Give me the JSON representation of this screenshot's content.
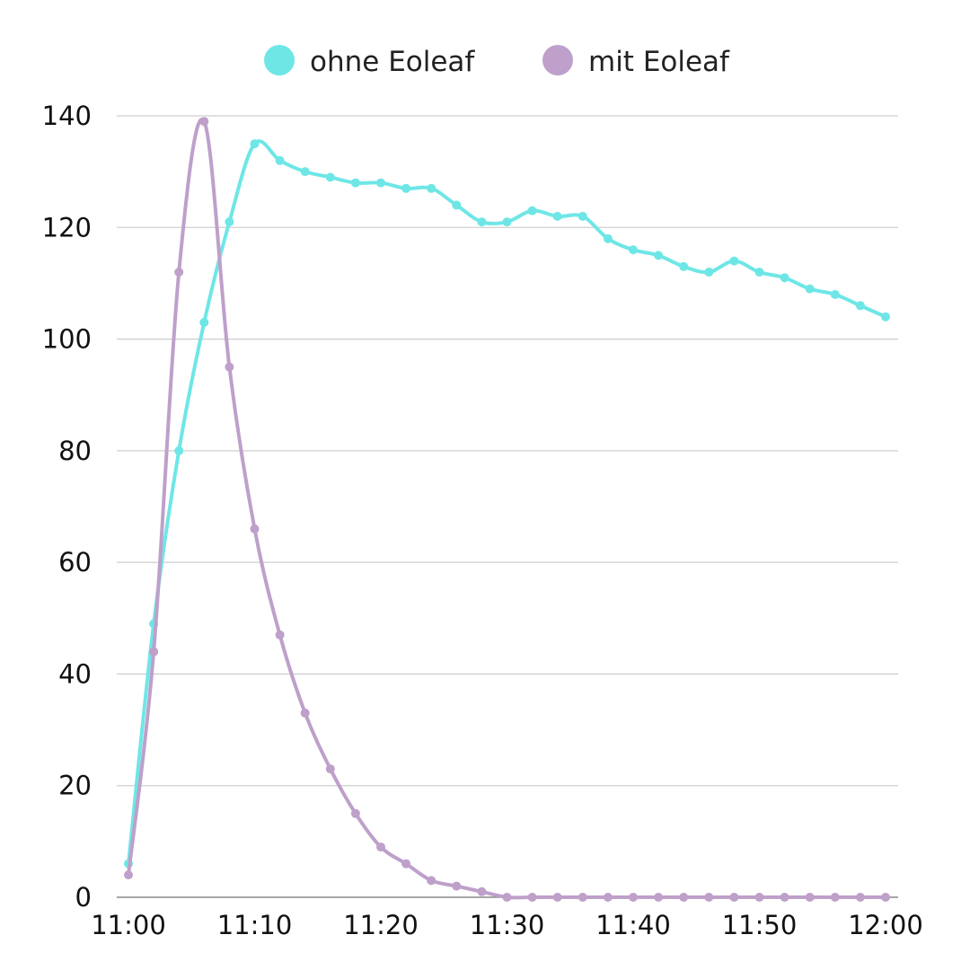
{
  "chart_data": {
    "type": "line",
    "title": "",
    "xlabel": "",
    "ylabel": "",
    "ylim": [
      0,
      140
    ],
    "yticks": [
      "0",
      "20",
      "40",
      "60",
      "80",
      "100",
      "120",
      "140"
    ],
    "xticks": [
      "11:00",
      "11:10",
      "11:20",
      "11:30",
      "11:40",
      "11:50",
      "12:00"
    ],
    "grid": true,
    "legend_position": "top-center",
    "x": [
      "11:00",
      "11:02",
      "11:04",
      "11:06",
      "11:08",
      "11:10",
      "11:12",
      "11:14",
      "11:16",
      "11:18",
      "11:20",
      "11:22",
      "11:24",
      "11:26",
      "11:28",
      "11:30",
      "11:32",
      "11:34",
      "11:36",
      "11:38",
      "11:40",
      "11:42",
      "11:44",
      "11:46",
      "11:48",
      "11:50",
      "11:52",
      "11:54",
      "11:56",
      "11:58",
      "12:00"
    ],
    "series": [
      {
        "name": "ohne Eoleaf",
        "color": "#6ee6e6",
        "values": [
          6,
          49,
          80,
          103,
          121,
          135,
          132,
          130,
          129,
          128,
          128,
          127,
          127,
          124,
          121,
          121,
          123,
          122,
          122,
          118,
          116,
          115,
          113,
          112,
          114,
          112,
          111,
          109,
          108,
          106,
          104
        ]
      },
      {
        "name": "mit Eoleaf",
        "color": "#bea0ca",
        "values": [
          4,
          44,
          112,
          139,
          95,
          66,
          47,
          33,
          23,
          15,
          9,
          6,
          3,
          2,
          1,
          0,
          0,
          0,
          0,
          0,
          0,
          0,
          0,
          0,
          0,
          0,
          0,
          0,
          0,
          0,
          0
        ]
      }
    ]
  }
}
